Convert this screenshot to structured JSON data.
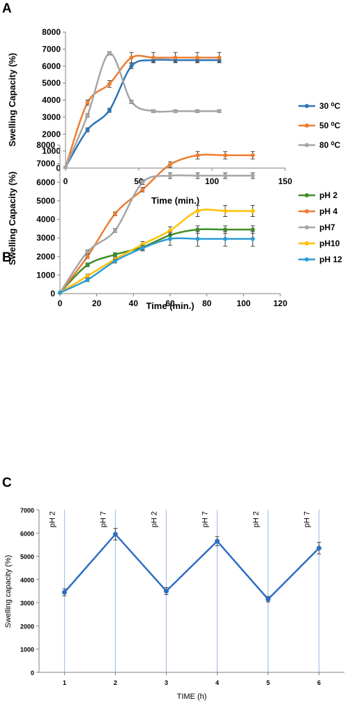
{
  "panels": {
    "A": {
      "letter": "A"
    },
    "B": {
      "letter": "B"
    },
    "C": {
      "letter": "C"
    }
  },
  "chart_data": [
    {
      "type": "line",
      "panel": "A",
      "xlabel": "Time (min.)",
      "ylabel": "Swelling Capacity (%)",
      "xlim": [
        0,
        150
      ],
      "ylim": [
        0,
        8000
      ],
      "xticks": [
        0,
        50,
        100,
        150
      ],
      "yticks": [
        0,
        1000,
        2000,
        3000,
        4000,
        5000,
        6000,
        7000,
        8000
      ],
      "grid": false,
      "legend_position": "right",
      "x": [
        0,
        15,
        30,
        45,
        60,
        75,
        90,
        105
      ],
      "series": [
        {
          "name": "30 ⁰C",
          "color": "#2e75b6",
          "values": [
            50,
            2250,
            3400,
            6000,
            6350,
            6350,
            6350,
            6350
          ],
          "errors": [
            0,
            120,
            120,
            150,
            120,
            120,
            120,
            120
          ]
        },
        {
          "name": "50 ⁰C",
          "color": "#ed7d31",
          "values": [
            50,
            3850,
            4950,
            6500,
            6500,
            6500,
            6500,
            6500
          ],
          "errors": [
            0,
            150,
            200,
            300,
            300,
            300,
            300,
            300
          ]
        },
        {
          "name": "80 ⁰C",
          "color": "#a5a5a5",
          "values": [
            50,
            3100,
            6750,
            3900,
            3350,
            3350,
            3350,
            3350
          ],
          "errors": [
            0,
            100,
            100,
            100,
            80,
            80,
            80,
            80
          ]
        }
      ]
    },
    {
      "type": "line",
      "panel": "B",
      "xlabel": "Time (min.)",
      "ylabel": "Swelling Capacity (%)",
      "xlim": [
        0,
        120
      ],
      "ylim": [
        0,
        8000
      ],
      "xticks": [
        0,
        20,
        40,
        60,
        80,
        100,
        120
      ],
      "yticks": [
        0,
        1000,
        2000,
        3000,
        4000,
        5000,
        6000,
        7000,
        8000
      ],
      "grid": false,
      "legend_position": "right",
      "x": [
        0,
        15,
        30,
        45,
        60,
        75,
        90,
        105
      ],
      "series": [
        {
          "name": "pH 2",
          "color": "#3e8e2a",
          "values": [
            50,
            1550,
            2100,
            2500,
            3150,
            3450,
            3450,
            3450
          ],
          "errors": [
            0,
            100,
            100,
            150,
            200,
            200,
            200,
            200
          ]
        },
        {
          "name": "pH 4",
          "color": "#ed7d31",
          "values": [
            50,
            2000,
            4300,
            5600,
            6950,
            7450,
            7450,
            7450
          ],
          "errors": [
            0,
            100,
            100,
            120,
            150,
            200,
            200,
            200
          ]
        },
        {
          "name": "pH7",
          "color": "#a5a5a5",
          "values": [
            50,
            2250,
            3400,
            6000,
            6350,
            6350,
            6350,
            6350
          ],
          "errors": [
            0,
            100,
            100,
            120,
            150,
            150,
            150,
            150
          ]
        },
        {
          "name": "pH10",
          "color": "#ffc000",
          "values": [
            50,
            950,
            1850,
            2650,
            3400,
            4450,
            4450,
            4450
          ],
          "errors": [
            0,
            100,
            100,
            150,
            200,
            300,
            300,
            300
          ]
        },
        {
          "name": "pH 12",
          "color": "#2e9bd6",
          "values": [
            50,
            750,
            1750,
            2450,
            2950,
            2950,
            2950,
            2950
          ],
          "errors": [
            0,
            100,
            100,
            150,
            350,
            400,
            400,
            400
          ]
        }
      ]
    },
    {
      "type": "line",
      "panel": "C",
      "xlabel": "TIME (h)",
      "ylabel": "Swelling capacity (%)",
      "xlim": [
        0.5,
        6.5
      ],
      "ylim": [
        0,
        7000
      ],
      "xticks": [
        1,
        2,
        3,
        4,
        5,
        6
      ],
      "yticks": [
        0,
        1000,
        2000,
        3000,
        4000,
        5000,
        6000,
        7000
      ],
      "grid": false,
      "x": [
        1,
        2,
        3,
        4,
        5,
        6
      ],
      "series": [
        {
          "name": "",
          "color": "#2e6dc4",
          "values": [
            3450,
            5950,
            3500,
            5650,
            3150,
            5350
          ],
          "errors": [
            150,
            250,
            150,
            200,
            120,
            250
          ]
        }
      ],
      "phase_lines": [
        1,
        2,
        3,
        4,
        5,
        6
      ],
      "phase_labels": [
        {
          "x": 1,
          "text": "pH 2"
        },
        {
          "x": 2,
          "text": "pH 7"
        },
        {
          "x": 3,
          "text": "pH 2"
        },
        {
          "x": 4,
          "text": "pH 7"
        },
        {
          "x": 5,
          "text": "pH 2"
        },
        {
          "x": 6,
          "text": "pH 7"
        }
      ]
    }
  ]
}
